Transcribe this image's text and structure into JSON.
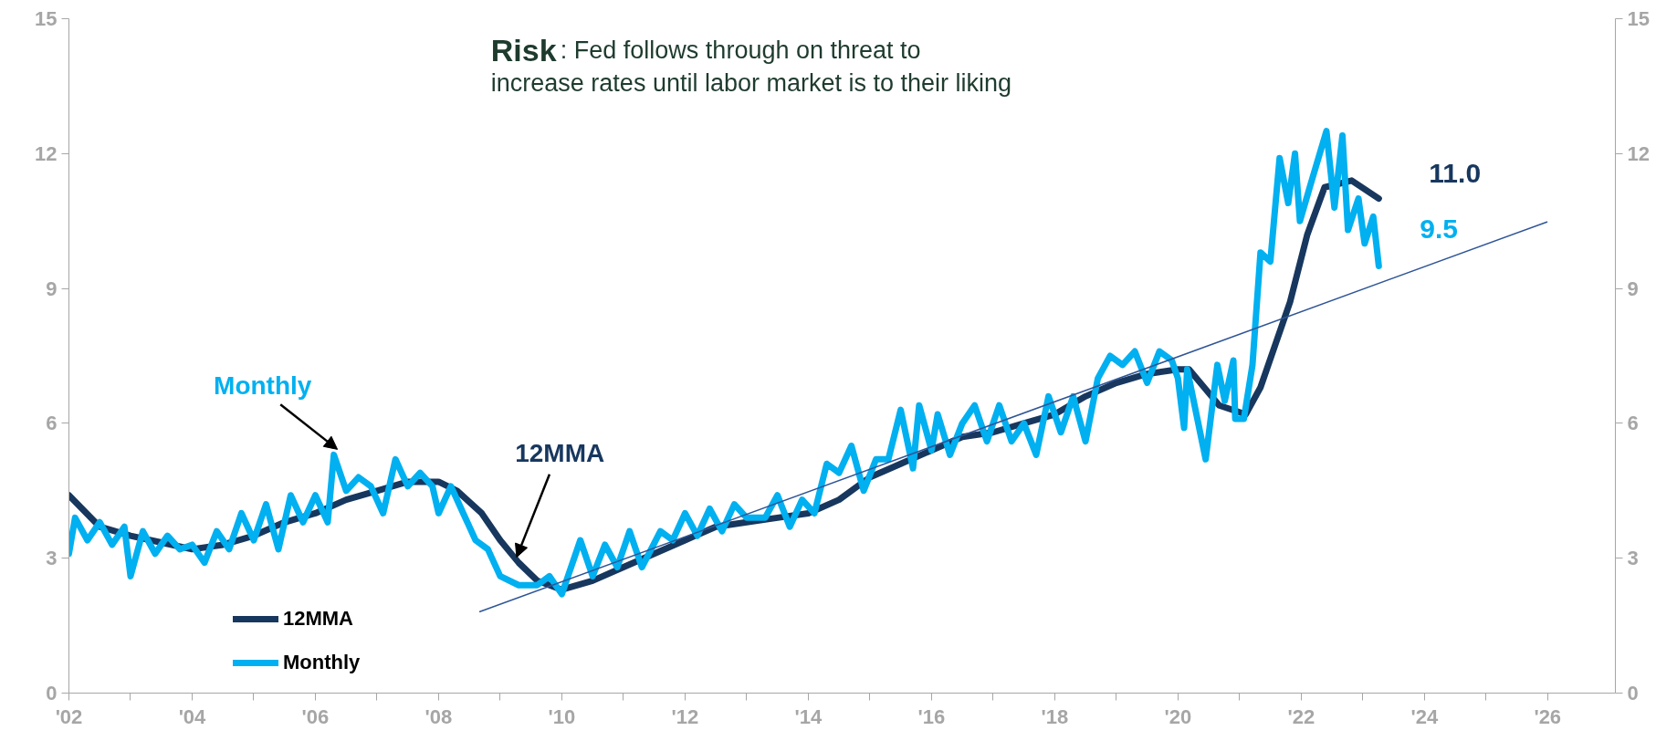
{
  "chart_data": {
    "type": "line",
    "x": [
      2002.0,
      2002.1,
      2002.3,
      2002.5,
      2002.7,
      2002.9,
      2003.0,
      2003.2,
      2003.4,
      2003.6,
      2003.8,
      2004.0,
      2004.2,
      2004.4,
      2004.6,
      2004.8,
      2005.0,
      2005.2,
      2005.4,
      2005.6,
      2005.8,
      2006.0,
      2006.2,
      2006.3,
      2006.5,
      2006.7,
      2006.9,
      2007.1,
      2007.3,
      2007.5,
      2007.7,
      2007.9,
      2008.0,
      2008.2,
      2008.4,
      2008.6,
      2008.8,
      2009.0,
      2009.3,
      2009.6,
      2009.8,
      2010.0,
      2010.3,
      2010.5,
      2010.7,
      2010.9,
      2011.1,
      2011.3,
      2011.6,
      2011.8,
      2012.0,
      2012.2,
      2012.4,
      2012.6,
      2012.8,
      2013.0,
      2013.3,
      2013.5,
      2013.7,
      2013.9,
      2014.1,
      2014.3,
      2014.5,
      2014.7,
      2014.9,
      2015.1,
      2015.3,
      2015.5,
      2015.7,
      2015.8,
      2016.0,
      2016.1,
      2016.3,
      2016.5,
      2016.7,
      2016.9,
      2017.1,
      2017.3,
      2017.5,
      2017.7,
      2017.9,
      2018.1,
      2018.3,
      2018.5,
      2018.7,
      2018.9,
      2019.1,
      2019.3,
      2019.5,
      2019.7,
      2019.9,
      2020.0,
      2020.1,
      2020.15,
      2020.45,
      2020.64,
      2020.76,
      2020.9,
      2020.93,
      2021.07,
      2021.21,
      2021.34,
      2021.5,
      2021.65,
      2021.79,
      2021.9,
      2021.98,
      2022.15,
      2022.41,
      2022.54,
      2022.67,
      2022.76,
      2022.93,
      2023.03,
      2023.17,
      2023.26
    ],
    "series": [
      {
        "name": "12MMA",
        "color": "#17375e",
        "x": [
          2002.0,
          2002.5,
          2003.0,
          2003.5,
          2004.0,
          2004.5,
          2005.0,
          2005.5,
          2006.0,
          2006.5,
          2007.0,
          2007.5,
          2008.0,
          2008.3,
          2008.7,
          2009.0,
          2009.3,
          2009.6,
          2010.0,
          2010.5,
          2011.0,
          2011.5,
          2012.0,
          2012.5,
          2013.0,
          2013.5,
          2014.0,
          2014.5,
          2015.0,
          2015.5,
          2016.0,
          2016.5,
          2017.0,
          2017.5,
          2018.0,
          2018.5,
          2019.0,
          2019.5,
          2020.0,
          2020.18,
          2020.67,
          2021.1,
          2021.34,
          2021.82,
          2022.1,
          2022.38,
          2022.82,
          2023.26
        ],
        "values": [
          4.4,
          3.7,
          3.5,
          3.35,
          3.2,
          3.3,
          3.5,
          3.8,
          4.0,
          4.3,
          4.5,
          4.7,
          4.7,
          4.5,
          4.0,
          3.4,
          2.9,
          2.5,
          2.3,
          2.5,
          2.8,
          3.1,
          3.4,
          3.7,
          3.8,
          3.9,
          4.0,
          4.3,
          4.8,
          5.1,
          5.4,
          5.7,
          5.8,
          6.0,
          6.2,
          6.6,
          6.9,
          7.1,
          7.2,
          7.2,
          6.4,
          6.2,
          6.8,
          8.7,
          10.2,
          11.25,
          11.4,
          11.0
        ]
      },
      {
        "name": "Monthly",
        "color": "#00b0f0",
        "values": [
          3.1,
          3.9,
          3.4,
          3.8,
          3.3,
          3.7,
          2.6,
          3.6,
          3.1,
          3.5,
          3.2,
          3.3,
          2.9,
          3.6,
          3.2,
          4.0,
          3.4,
          4.2,
          3.2,
          4.4,
          3.8,
          4.4,
          3.8,
          5.3,
          4.5,
          4.8,
          4.6,
          4.0,
          5.2,
          4.6,
          4.9,
          4.6,
          4.0,
          4.6,
          4.0,
          3.4,
          3.2,
          2.6,
          2.4,
          2.4,
          2.6,
          2.2,
          3.4,
          2.6,
          3.3,
          2.8,
          3.6,
          2.8,
          3.6,
          3.4,
          4.0,
          3.5,
          4.1,
          3.6,
          4.2,
          3.9,
          3.9,
          4.4,
          3.7,
          4.3,
          4.0,
          5.1,
          4.9,
          5.5,
          4.5,
          5.2,
          5.2,
          6.3,
          5.0,
          6.4,
          5.4,
          6.2,
          5.3,
          6.0,
          6.4,
          5.6,
          6.4,
          5.6,
          6.0,
          5.3,
          6.6,
          5.8,
          6.6,
          5.6,
          7.0,
          7.5,
          7.3,
          7.6,
          6.9,
          7.6,
          7.4,
          7.0,
          5.9,
          7.2,
          5.2,
          7.3,
          6.5,
          7.4,
          6.1,
          6.1,
          7.3,
          9.8,
          9.6,
          11.9,
          10.9,
          12.0,
          10.5,
          11.3,
          12.5,
          10.8,
          12.4,
          10.3,
          11.0,
          10.0,
          10.6,
          9.5
        ]
      },
      {
        "color": "#2f5597",
        "x": [
          2008.67,
          2025.99
        ],
        "values": [
          1.81,
          10.48
        ]
      }
    ],
    "xlim": [
      2002,
      2027.1
    ],
    "xticks": [
      {
        "value": 2002,
        "label": "'02"
      },
      {
        "value": 2004,
        "label": "'04"
      },
      {
        "value": 2006,
        "label": "'06"
      },
      {
        "value": 2008,
        "label": "'08"
      },
      {
        "value": 2010,
        "label": "'10"
      },
      {
        "value": 2012,
        "label": "'12"
      },
      {
        "value": 2014,
        "label": "'14"
      },
      {
        "value": 2016,
        "label": "'16"
      },
      {
        "value": 2018,
        "label": "'18"
      },
      {
        "value": 2020,
        "label": "'20"
      },
      {
        "value": 2022,
        "label": "'22"
      },
      {
        "value": 2024,
        "label": "'24"
      },
      {
        "value": 2026,
        "label": "'26"
      }
    ],
    "ylim": [
      0,
      15
    ],
    "yticks": [
      0,
      3,
      6,
      9,
      12,
      15
    ],
    "y2lim": [
      0,
      15
    ],
    "y2ticks": [
      0,
      3,
      6,
      9,
      12,
      15
    ],
    "annotations": [
      "Risk: Fed follows through on threat to\nincrease rates until labor market is to their liking",
      {
        "text": "Monthly",
        "x": 2006.3,
        "y": 5.3
      },
      {
        "text": "12MMA",
        "x": 2009.3,
        "y": 2.9
      },
      {
        "text": "11.0",
        "x": 2023.26,
        "y": 11.0
      },
      {
        "text": "9.5",
        "x": 2023.26,
        "y": 9.5
      }
    ],
    "legend": "bottom left",
    "grid": false,
    "marker": "none",
    "line_style": "solid"
  }
}
